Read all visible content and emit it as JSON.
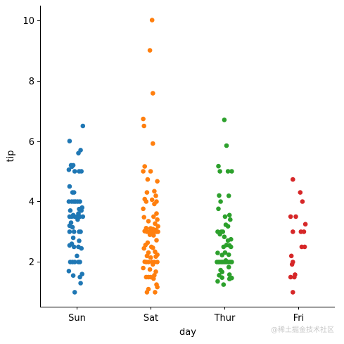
{
  "chart_data": {
    "type": "scatter",
    "subtype": "strip",
    "xlabel": "day",
    "ylabel": "tip",
    "categories": [
      "Sun",
      "Sat",
      "Thur",
      "Fri"
    ],
    "ylim": [
      0.52,
      10.48
    ],
    "yticks": [
      2,
      4,
      6,
      8,
      10
    ],
    "grid": false,
    "legend": "none",
    "series": [
      {
        "category": "Sun",
        "color": "#1f77b4",
        "points": [
          {
            "x": 0.08,
            "y": 6.5
          },
          {
            "x": -0.1,
            "y": 6.0
          },
          {
            "x": 0.05,
            "y": 5.7
          },
          {
            "x": 0.02,
            "y": 5.6
          },
          {
            "x": -0.08,
            "y": 5.2
          },
          {
            "x": -0.05,
            "y": 5.2
          },
          {
            "x": -0.07,
            "y": 5.15
          },
          {
            "x": -0.11,
            "y": 5.05
          },
          {
            "x": -0.03,
            "y": 5.0
          },
          {
            "x": 0.03,
            "y": 5.0
          },
          {
            "x": 0.06,
            "y": 5.0
          },
          {
            "x": -0.1,
            "y": 4.5
          },
          {
            "x": -0.06,
            "y": 4.3
          },
          {
            "x": -0.04,
            "y": 4.3
          },
          {
            "x": -0.11,
            "y": 4.0
          },
          {
            "x": -0.07,
            "y": 4.0
          },
          {
            "x": -0.04,
            "y": 4.0
          },
          {
            "x": -0.02,
            "y": 4.0
          },
          {
            "x": 0.01,
            "y": 4.0
          },
          {
            "x": 0.04,
            "y": 4.0
          },
          {
            "x": 0.07,
            "y": 3.8
          },
          {
            "x": 0.03,
            "y": 3.75
          },
          {
            "x": 0.06,
            "y": 3.7
          },
          {
            "x": 0.02,
            "y": 3.6
          },
          {
            "x": -0.09,
            "y": 3.7
          },
          {
            "x": -0.05,
            "y": 3.55
          },
          {
            "x": -0.1,
            "y": 3.5
          },
          {
            "x": -0.07,
            "y": 3.5
          },
          {
            "x": -0.03,
            "y": 3.5
          },
          {
            "x": 0.0,
            "y": 3.5
          },
          {
            "x": 0.04,
            "y": 3.5
          },
          {
            "x": 0.08,
            "y": 3.5
          },
          {
            "x": 0.01,
            "y": 3.4
          },
          {
            "x": -0.08,
            "y": 3.3
          },
          {
            "x": -0.1,
            "y": 3.2
          },
          {
            "x": -0.06,
            "y": 3.15
          },
          {
            "x": -0.1,
            "y": 3.0
          },
          {
            "x": -0.04,
            "y": 3.0
          },
          {
            "x": 0.03,
            "y": 3.0
          },
          {
            "x": 0.05,
            "y": 3.0
          },
          {
            "x": -0.05,
            "y": 2.8
          },
          {
            "x": 0.03,
            "y": 2.7
          },
          {
            "x": -0.07,
            "y": 2.6
          },
          {
            "x": -0.1,
            "y": 2.55
          },
          {
            "x": -0.04,
            "y": 2.5
          },
          {
            "x": 0.02,
            "y": 2.5
          },
          {
            "x": 0.06,
            "y": 2.45
          },
          {
            "x": 0.0,
            "y": 2.2
          },
          {
            "x": -0.09,
            "y": 2.0
          },
          {
            "x": -0.06,
            "y": 2.0
          },
          {
            "x": -0.03,
            "y": 2.0
          },
          {
            "x": 0.02,
            "y": 2.0
          },
          {
            "x": 0.04,
            "y": 2.0
          },
          {
            "x": -0.11,
            "y": 1.7
          },
          {
            "x": 0.07,
            "y": 1.6
          },
          {
            "x": -0.05,
            "y": 1.55
          },
          {
            "x": 0.04,
            "y": 1.5
          },
          {
            "x": 0.05,
            "y": 1.3
          },
          {
            "x": -0.03,
            "y": 1.0
          }
        ]
      },
      {
        "category": "Sat",
        "color": "#ff7f0e",
        "points": [
          {
            "x": 0.02,
            "y": 10.0
          },
          {
            "x": -0.01,
            "y": 9.0
          },
          {
            "x": 0.03,
            "y": 7.58
          },
          {
            "x": -0.1,
            "y": 6.73
          },
          {
            "x": -0.09,
            "y": 6.5
          },
          {
            "x": 0.03,
            "y": 5.92
          },
          {
            "x": -0.08,
            "y": 5.16
          },
          {
            "x": -0.1,
            "y": 5.0
          },
          {
            "x": 0.0,
            "y": 5.0
          },
          {
            "x": -0.04,
            "y": 4.73
          },
          {
            "x": 0.09,
            "y": 4.67
          },
          {
            "x": 0.05,
            "y": 4.34
          },
          {
            "x": -0.05,
            "y": 4.3
          },
          {
            "x": 0.07,
            "y": 4.19
          },
          {
            "x": -0.08,
            "y": 4.08
          },
          {
            "x": 0.02,
            "y": 4.06
          },
          {
            "x": -0.06,
            "y": 4.0
          },
          {
            "x": 0.08,
            "y": 4.0
          },
          {
            "x": 0.05,
            "y": 3.92
          },
          {
            "x": -0.1,
            "y": 3.76
          },
          {
            "x": 0.08,
            "y": 3.6
          },
          {
            "x": -0.09,
            "y": 3.48
          },
          {
            "x": 0.04,
            "y": 3.5
          },
          {
            "x": 0.09,
            "y": 3.4
          },
          {
            "x": -0.03,
            "y": 3.35
          },
          {
            "x": 0.06,
            "y": 3.27
          },
          {
            "x": 0.1,
            "y": 3.18
          },
          {
            "x": -0.06,
            "y": 3.12
          },
          {
            "x": 0.0,
            "y": 3.11
          },
          {
            "x": 0.03,
            "y": 3.09
          },
          {
            "x": 0.07,
            "y": 3.06
          },
          {
            "x": -0.08,
            "y": 3.02
          },
          {
            "x": -0.05,
            "y": 3.0
          },
          {
            "x": -0.02,
            "y": 3.0
          },
          {
            "x": 0.02,
            "y": 3.0
          },
          {
            "x": 0.05,
            "y": 3.0
          },
          {
            "x": 0.08,
            "y": 3.0
          },
          {
            "x": 0.1,
            "y": 3.0
          },
          {
            "x": -0.01,
            "y": 2.9
          },
          {
            "x": 0.04,
            "y": 2.88
          },
          {
            "x": 0.08,
            "y": 2.72
          },
          {
            "x": -0.04,
            "y": 2.64
          },
          {
            "x": -0.07,
            "y": 2.56
          },
          {
            "x": 0.01,
            "y": 2.5
          },
          {
            "x": 0.03,
            "y": 2.47
          },
          {
            "x": -0.09,
            "y": 2.45
          },
          {
            "x": 0.06,
            "y": 2.34
          },
          {
            "x": -0.03,
            "y": 2.31
          },
          {
            "x": 0.09,
            "y": 2.24
          },
          {
            "x": -0.05,
            "y": 2.2
          },
          {
            "x": 0.07,
            "y": 2.18
          },
          {
            "x": 0.0,
            "y": 2.15
          },
          {
            "x": -0.08,
            "y": 2.01
          },
          {
            "x": -0.06,
            "y": 2.0
          },
          {
            "x": -0.03,
            "y": 2.0
          },
          {
            "x": 0.02,
            "y": 2.0
          },
          {
            "x": 0.05,
            "y": 2.0
          },
          {
            "x": 0.09,
            "y": 2.0
          },
          {
            "x": 0.03,
            "y": 1.92
          },
          {
            "x": -0.1,
            "y": 1.8
          },
          {
            "x": -0.01,
            "y": 1.75
          },
          {
            "x": 0.07,
            "y": 1.68
          },
          {
            "x": 0.05,
            "y": 1.56
          },
          {
            "x": -0.06,
            "y": 1.5
          },
          {
            "x": -0.03,
            "y": 1.5
          },
          {
            "x": 0.0,
            "y": 1.5
          },
          {
            "x": 0.04,
            "y": 1.45
          },
          {
            "x": 0.08,
            "y": 1.25
          },
          {
            "x": -0.03,
            "y": 1.1
          },
          {
            "x": -0.05,
            "y": 1.0
          },
          {
            "x": 0.06,
            "y": 1.0
          },
          {
            "x": 0.09,
            "y": 1.17
          }
        ]
      },
      {
        "category": "Thur",
        "color": "#2ca02c",
        "points": [
          {
            "x": 0.0,
            "y": 6.7
          },
          {
            "x": 0.03,
            "y": 5.85
          },
          {
            "x": -0.08,
            "y": 5.17
          },
          {
            "x": -0.06,
            "y": 5.0
          },
          {
            "x": 0.05,
            "y": 5.0
          },
          {
            "x": 0.1,
            "y": 5.0
          },
          {
            "x": -0.07,
            "y": 4.2
          },
          {
            "x": 0.06,
            "y": 4.19
          },
          {
            "x": -0.05,
            "y": 4.0
          },
          {
            "x": -0.08,
            "y": 3.76
          },
          {
            "x": 0.07,
            "y": 3.55
          },
          {
            "x": 0.01,
            "y": 3.5
          },
          {
            "x": 0.08,
            "y": 3.4
          },
          {
            "x": 0.02,
            "y": 3.23
          },
          {
            "x": 0.05,
            "y": 3.18
          },
          {
            "x": -0.02,
            "y": 3.0
          },
          {
            "x": -0.09,
            "y": 3.0
          },
          {
            "x": -0.06,
            "y": 2.92
          },
          {
            "x": -0.04,
            "y": 3.0
          },
          {
            "x": 0.0,
            "y": 2.83
          },
          {
            "x": 0.09,
            "y": 2.75
          },
          {
            "x": 0.05,
            "y": 2.71
          },
          {
            "x": 0.03,
            "y": 2.56
          },
          {
            "x": 0.07,
            "y": 2.55
          },
          {
            "x": 0.09,
            "y": 2.5
          },
          {
            "x": -0.01,
            "y": 2.5
          },
          {
            "x": 0.01,
            "y": 2.31
          },
          {
            "x": -0.09,
            "y": 2.3
          },
          {
            "x": 0.06,
            "y": 2.24
          },
          {
            "x": -0.03,
            "y": 2.23
          },
          {
            "x": 0.02,
            "y": 2.05
          },
          {
            "x": -0.1,
            "y": 2.0
          },
          {
            "x": -0.08,
            "y": 2.0
          },
          {
            "x": -0.06,
            "y": 2.0
          },
          {
            "x": -0.04,
            "y": 2.0
          },
          {
            "x": -0.02,
            "y": 2.0
          },
          {
            "x": 0.0,
            "y": 2.0
          },
          {
            "x": 0.02,
            "y": 2.0
          },
          {
            "x": 0.04,
            "y": 2.0
          },
          {
            "x": 0.06,
            "y": 2.0
          },
          {
            "x": 0.08,
            "y": 2.0
          },
          {
            "x": 0.1,
            "y": 2.0
          },
          {
            "x": 0.06,
            "y": 1.83
          },
          {
            "x": -0.05,
            "y": 1.73
          },
          {
            "x": -0.03,
            "y": 1.67
          },
          {
            "x": 0.07,
            "y": 1.58
          },
          {
            "x": -0.07,
            "y": 1.56
          },
          {
            "x": -0.03,
            "y": 1.48
          },
          {
            "x": 0.1,
            "y": 1.47
          },
          {
            "x": 0.07,
            "y": 1.44
          },
          {
            "x": -0.09,
            "y": 1.36
          },
          {
            "x": -0.01,
            "y": 1.25
          }
        ]
      },
      {
        "category": "Fri",
        "color": "#d62728",
        "points": [
          {
            "x": -0.07,
            "y": 4.73
          },
          {
            "x": 0.03,
            "y": 4.3
          },
          {
            "x": 0.06,
            "y": 4.0
          },
          {
            "x": -0.1,
            "y": 3.5
          },
          {
            "x": -0.03,
            "y": 3.5
          },
          {
            "x": 0.1,
            "y": 3.25
          },
          {
            "x": -0.07,
            "y": 3.0
          },
          {
            "x": 0.04,
            "y": 3.0
          },
          {
            "x": 0.08,
            "y": 3.0
          },
          {
            "x": 0.05,
            "y": 2.5
          },
          {
            "x": 0.09,
            "y": 2.5
          },
          {
            "x": -0.09,
            "y": 2.2
          },
          {
            "x": -0.07,
            "y": 2.0
          },
          {
            "x": -0.08,
            "y": 1.92
          },
          {
            "x": -0.04,
            "y": 1.58
          },
          {
            "x": -0.1,
            "y": 1.5
          },
          {
            "x": -0.05,
            "y": 1.5
          },
          {
            "x": -0.07,
            "y": 1.0
          }
        ]
      }
    ]
  },
  "watermark": "@稀土掘金技术社区"
}
